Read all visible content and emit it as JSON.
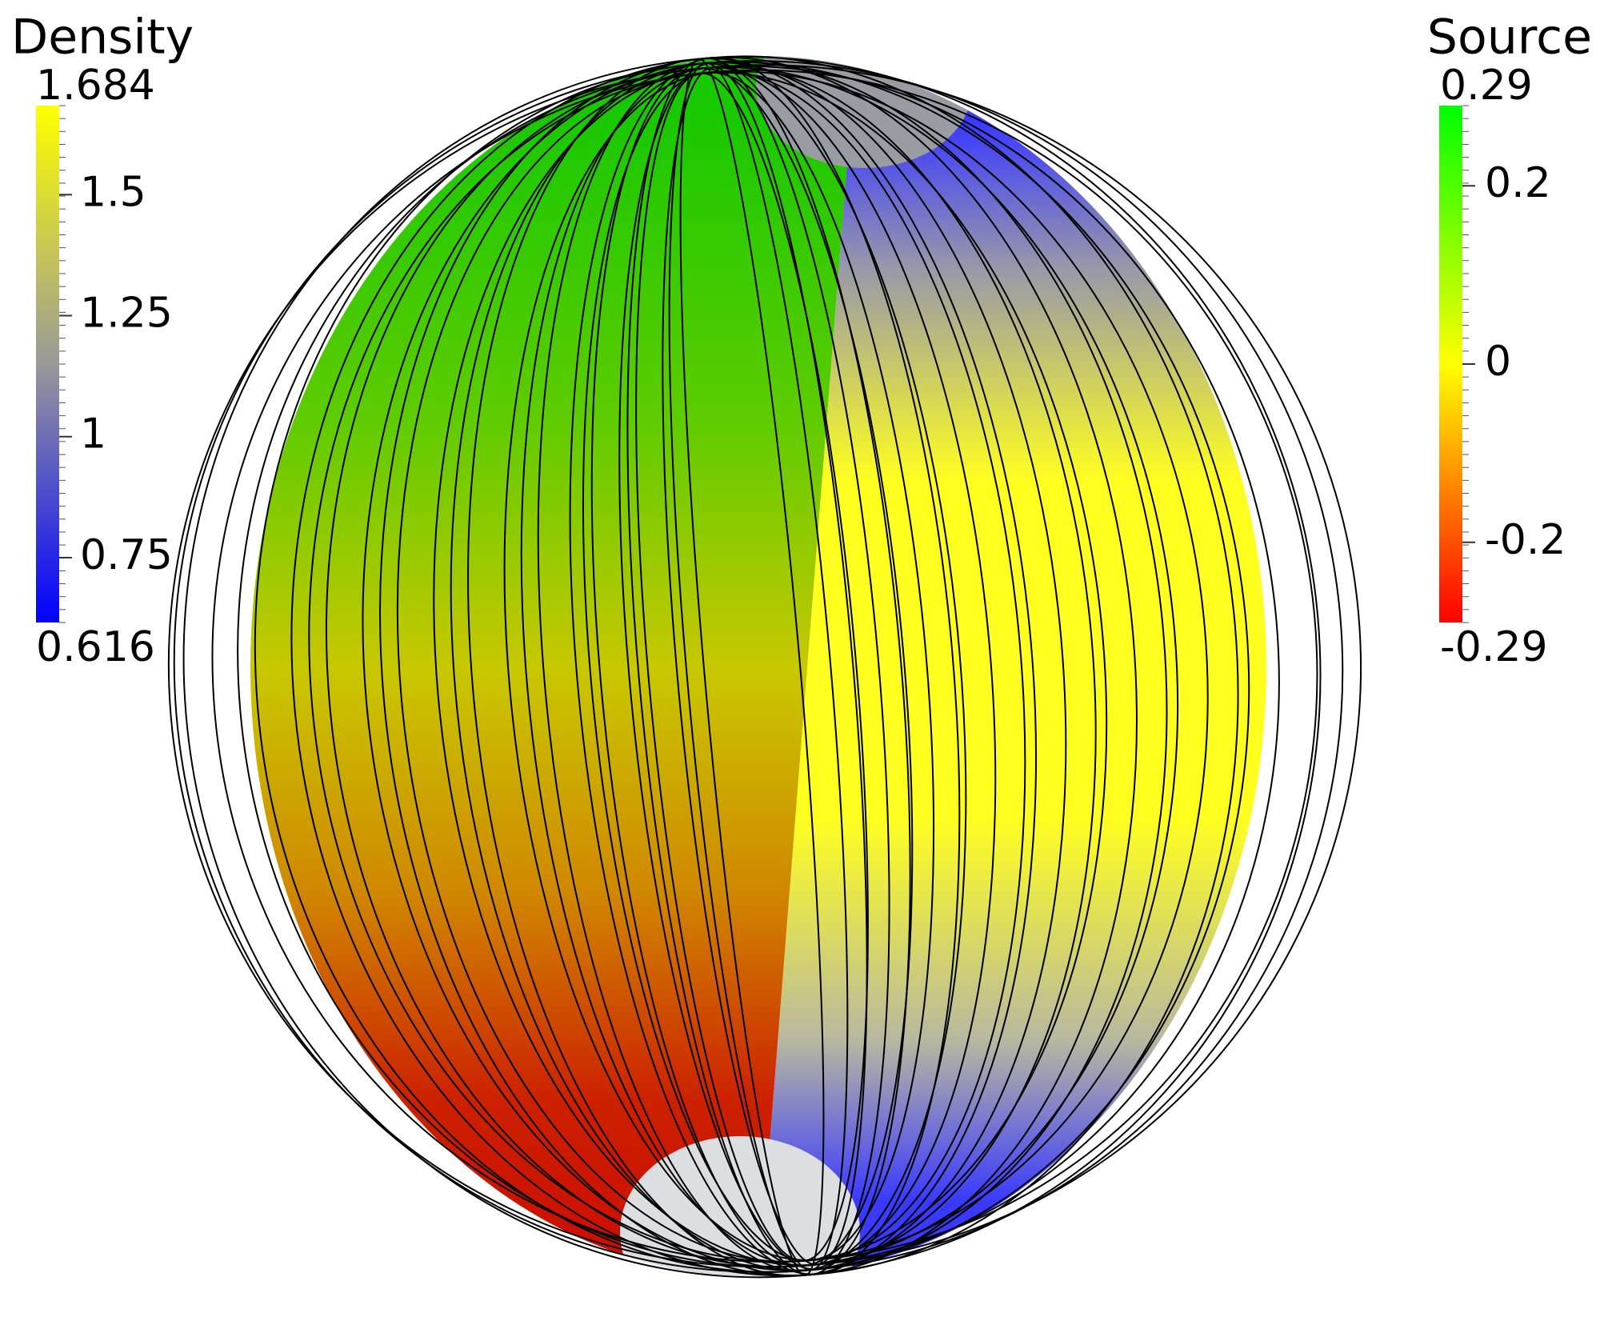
{
  "colorbars": [
    {
      "title": "Density",
      "max": 1.684,
      "min": 0.616,
      "ticks": [
        1.5,
        1.25,
        1,
        0.75
      ]
    },
    {
      "title": "Source",
      "max": 0.29,
      "min": -0.29,
      "ticks": [
        0.2,
        0,
        -0.2
      ]
    }
  ]
}
